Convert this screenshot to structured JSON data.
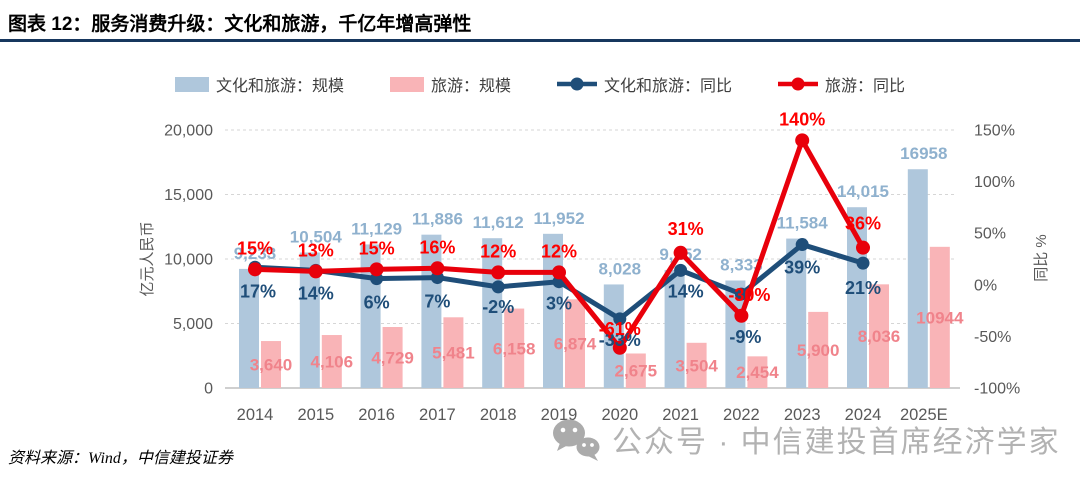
{
  "header": {
    "title": "图表 12：服务消费升级：文化和旅游，千亿年增高弹性"
  },
  "footer": {
    "source": "资料来源：Wind，中信建投证券"
  },
  "watermark": {
    "icon": "wechat-icon",
    "text": "公众号 · 中信建投首席经济学家"
  },
  "chart_data": {
    "type": "combo_bar_line",
    "categories": [
      "2014",
      "2015",
      "2016",
      "2017",
      "2018",
      "2019",
      "2020",
      "2021",
      "2022",
      "2023",
      "2024",
      "2025E"
    ],
    "left_axis": {
      "title": "亿元人民币",
      "min": 0,
      "max": 20000,
      "ticks": [
        0,
        5000,
        10000,
        15000,
        20000
      ],
      "tick_labels": [
        "0",
        "5,000",
        "10,000",
        "15,000",
        "20,000"
      ]
    },
    "right_axis": {
      "title": "同比 %",
      "min": -100,
      "max": 150,
      "ticks": [
        150,
        100,
        50,
        0,
        -50,
        -100
      ],
      "tick_labels": [
        "150%",
        "100%",
        "50%",
        "0%",
        "-50%",
        "-100%"
      ]
    },
    "grid": "dashed horizontal lines at left-axis ticks",
    "legend_position": "top",
    "series": [
      {
        "name": "文化和旅游：规模",
        "type": "bar",
        "axis": "left",
        "color": "#AFC7DC",
        "label_color": "#8FB1CE",
        "values": [
          9233,
          10504,
          11129,
          11886,
          11612,
          11952,
          8028,
          9152,
          8333,
          11584,
          14015,
          16958
        ],
        "labels": [
          "9,233",
          "10,504",
          "11,129",
          "11,886",
          "11,612",
          "11,952",
          "8,028",
          "9,152",
          "8,333",
          "11,584",
          "14,015",
          "16958"
        ]
      },
      {
        "name": "旅游：规模",
        "type": "bar",
        "axis": "left",
        "color": "#F9B4B7",
        "label_color": "#F0838B",
        "values": [
          3640,
          4106,
          4729,
          5481,
          6158,
          6874,
          2675,
          3504,
          2454,
          5900,
          8036,
          10944
        ],
        "labels": [
          "3,640",
          "4,106",
          "4,729",
          "5,481",
          "6,158",
          "6,874",
          "2,675",
          "3,504",
          "2,454",
          "5,900",
          "8,036",
          "10944"
        ]
      },
      {
        "name": "文化和旅游：同比",
        "type": "line",
        "axis": "right",
        "color": "#1F4E79",
        "label_color": "#1F4E79",
        "values": [
          17,
          14,
          6,
          7,
          -2,
          3,
          -33,
          14,
          -9,
          39,
          21,
          null
        ],
        "labels": [
          "17%",
          "14%",
          "6%",
          "7%",
          "-2%",
          "3%",
          "-33%",
          "14%",
          "-9%",
          "39%",
          "21%",
          null
        ]
      },
      {
        "name": "旅游：同比",
        "type": "line",
        "axis": "right",
        "color": "#E8000B",
        "label_color": "#FE0000",
        "values": [
          15,
          13,
          15,
          16,
          12,
          12,
          -61,
          31,
          -30,
          140,
          36,
          null
        ],
        "labels": [
          "15%",
          "13%",
          "15%",
          "16%",
          "12%",
          "12%",
          "-61%",
          "31%",
          "-30%",
          "140%",
          "36%",
          null
        ]
      }
    ]
  }
}
